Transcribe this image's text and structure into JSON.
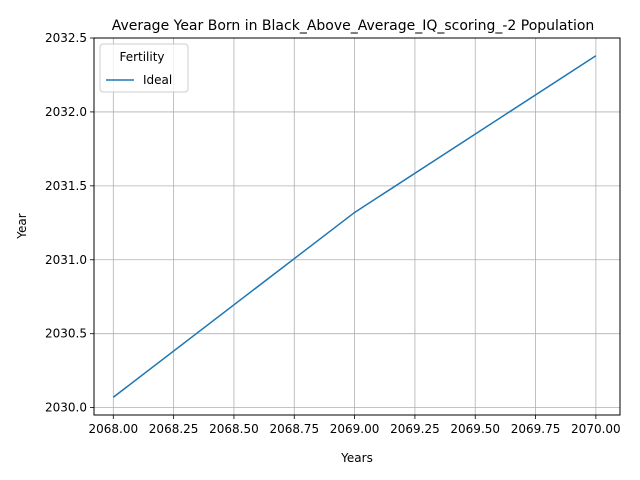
{
  "chart_data": {
    "type": "line",
    "title": "Average Year Born in Black_Above_Average_IQ_scoring_-2 Population",
    "xlabel": "Years",
    "ylabel": "Year",
    "xlim": [
      2067.92,
      2070.1
    ],
    "ylim": [
      2029.95,
      2032.5
    ],
    "x_ticks": [
      2068.0,
      2068.25,
      2068.5,
      2068.75,
      2069.0,
      2069.25,
      2069.5,
      2069.75,
      2070.0
    ],
    "x_tick_labels": [
      "2068.00",
      "2068.25",
      "2068.50",
      "2068.75",
      "2069.00",
      "2069.25",
      "2069.50",
      "2069.75",
      "2070.00"
    ],
    "y_ticks": [
      2030.0,
      2030.5,
      2031.0,
      2031.5,
      2032.0,
      2032.5
    ],
    "y_tick_labels": [
      "2030.0",
      "2030.5",
      "2031.0",
      "2031.5",
      "2032.0",
      "2032.5"
    ],
    "grid": true,
    "legend": {
      "title": "Fertility",
      "position": "top-left"
    },
    "series": [
      {
        "name": "Ideal",
        "color": "#1f77b4",
        "x": [
          2068.0,
          2069.0,
          2070.0
        ],
        "y": [
          2030.07,
          2031.32,
          2032.38
        ]
      }
    ]
  }
}
